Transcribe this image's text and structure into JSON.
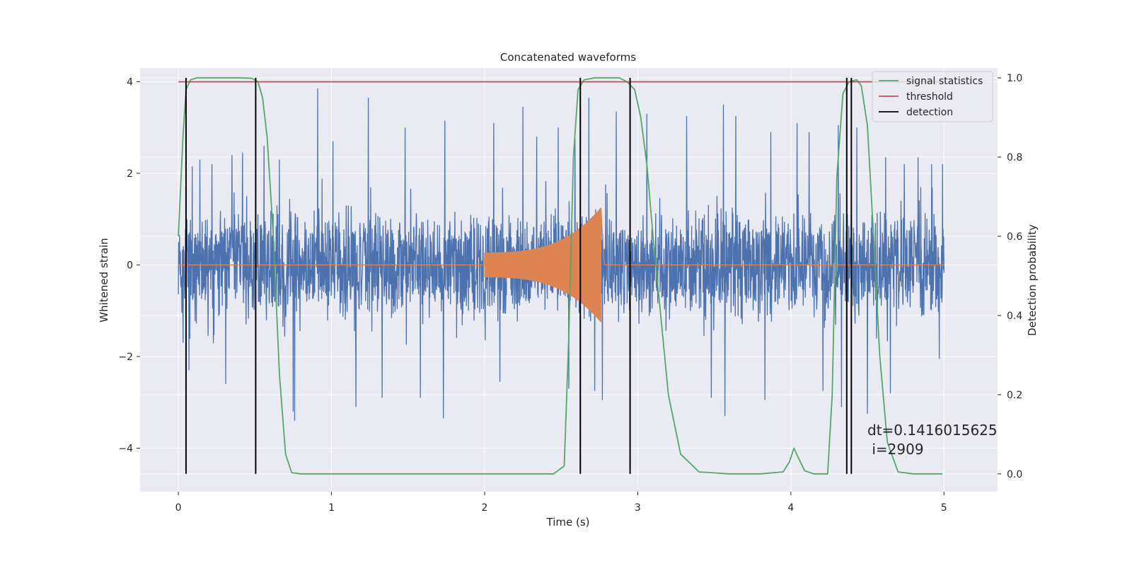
{
  "chart_data": {
    "type": "line",
    "title": "Concatenated waveforms",
    "xlabel": "Time (s)",
    "ylabel": "Whitened strain",
    "y2label": "Detection probability",
    "xlim": [
      -0.25,
      5.35
    ],
    "ylim": [
      -4.95,
      4.3
    ],
    "y2lim": [
      -0.045,
      1.025
    ],
    "xticks": [
      0,
      1,
      2,
      3,
      4,
      5
    ],
    "yticks": [
      -4,
      -2,
      0,
      2,
      4
    ],
    "y2ticks": [
      0.0,
      0.2,
      0.4,
      0.6,
      0.8,
      1.0
    ],
    "grid": true,
    "legend_position": "top-right",
    "colors": {
      "background": "#EAEAF2",
      "grid": "#FFFFFF",
      "whitened_strain": "#4C72B0",
      "injected_waveform": "#DD8452",
      "signal_statistics": "#55A868",
      "threshold": "#C44E52",
      "detection": "#000000"
    },
    "series": [
      {
        "name": "signal statistics",
        "axis": "right",
        "x": [
          0.0,
          0.03,
          0.05,
          0.08,
          0.12,
          0.2,
          0.3,
          0.4,
          0.48,
          0.52,
          0.55,
          0.58,
          0.62,
          0.66,
          0.7,
          0.74,
          0.8,
          1.0,
          1.5,
          2.0,
          2.3,
          2.45,
          2.52,
          2.55,
          2.58,
          2.61,
          2.65,
          2.72,
          2.8,
          2.88,
          2.93,
          2.98,
          3.02,
          3.06,
          3.1,
          3.15,
          3.2,
          3.28,
          3.4,
          3.6,
          3.8,
          3.95,
          3.99,
          4.02,
          4.05,
          4.09,
          4.15,
          4.2,
          4.24,
          4.27,
          4.3,
          4.34,
          4.38,
          4.43,
          4.46,
          4.5,
          4.54,
          4.58,
          4.63,
          4.7,
          4.8,
          4.99
        ],
        "values": [
          0.6,
          0.85,
          0.97,
          0.995,
          1.0,
          1.0,
          1.0,
          1.0,
          0.999,
          0.99,
          0.95,
          0.85,
          0.6,
          0.25,
          0.05,
          0.003,
          0.0,
          0.0,
          0.0,
          0.0,
          0.0,
          0.0,
          0.02,
          0.35,
          0.8,
          0.97,
          0.995,
          1.0,
          1.0,
          1.0,
          0.99,
          0.97,
          0.9,
          0.78,
          0.6,
          0.4,
          0.2,
          0.05,
          0.005,
          0.0,
          0.0,
          0.005,
          0.03,
          0.065,
          0.04,
          0.008,
          0.0,
          0.0,
          0.0,
          0.2,
          0.75,
          0.96,
          0.99,
          0.995,
          0.98,
          0.88,
          0.6,
          0.3,
          0.08,
          0.005,
          0.0,
          0.0
        ]
      },
      {
        "name": "threshold",
        "axis": "right",
        "x": [
          0.0,
          4.99
        ],
        "values": [
          0.99,
          0.99
        ]
      },
      {
        "name": "detection",
        "axis": "right",
        "vlines": [
          0.05,
          0.505,
          2.625,
          2.95,
          4.365,
          4.395
        ],
        "ymin": 0.0,
        "ymax": 1.0
      }
    ],
    "strain_envelope": {
      "x_range": [
        0.0,
        5.0
      ],
      "typical_amplitude": 1.2,
      "spikes": [
        {
          "x": 0.09,
          "y": 2.15
        },
        {
          "x": 0.14,
          "y": 2.3
        },
        {
          "x": 0.22,
          "y": 2.2
        },
        {
          "x": 0.35,
          "y": 2.4
        },
        {
          "x": 0.42,
          "y": 2.45
        },
        {
          "x": 0.56,
          "y": 2.6
        },
        {
          "x": 0.66,
          "y": 2.3
        },
        {
          "x": 0.91,
          "y": 3.85
        },
        {
          "x": 1.01,
          "y": 2.7
        },
        {
          "x": 1.24,
          "y": 3.65
        },
        {
          "x": 1.48,
          "y": 3.0
        },
        {
          "x": 1.74,
          "y": 3.15
        },
        {
          "x": 2.06,
          "y": 3.1
        },
        {
          "x": 2.25,
          "y": 3.45
        },
        {
          "x": 2.34,
          "y": 2.8
        },
        {
          "x": 2.48,
          "y": 3.0
        },
        {
          "x": 2.59,
          "y": 2.75
        },
        {
          "x": 2.68,
          "y": 3.65
        },
        {
          "x": 2.86,
          "y": 3.35
        },
        {
          "x": 3.06,
          "y": 3.3
        },
        {
          "x": 3.32,
          "y": 3.25
        },
        {
          "x": 3.56,
          "y": 3.5
        },
        {
          "x": 3.64,
          "y": 3.25
        },
        {
          "x": 3.87,
          "y": 2.9
        },
        {
          "x": 4.04,
          "y": 3.1
        },
        {
          "x": 4.12,
          "y": 2.9
        },
        {
          "x": 4.31,
          "y": 3.05
        },
        {
          "x": 4.43,
          "y": 3.0
        },
        {
          "x": 4.62,
          "y": 2.35
        },
        {
          "x": 4.74,
          "y": 2.2
        },
        {
          "x": 4.83,
          "y": 2.35
        },
        {
          "x": 4.92,
          "y": 2.2
        },
        {
          "x": 4.99,
          "y": 2.2
        },
        {
          "x": 0.03,
          "y": -1.7
        },
        {
          "x": 0.07,
          "y": -2.3
        },
        {
          "x": 0.31,
          "y": -2.6
        },
        {
          "x": 0.75,
          "y": -3.2
        },
        {
          "x": 0.76,
          "y": -3.4
        },
        {
          "x": 1.16,
          "y": -3.1
        },
        {
          "x": 1.33,
          "y": -2.9
        },
        {
          "x": 1.58,
          "y": -2.9
        },
        {
          "x": 1.73,
          "y": -3.35
        },
        {
          "x": 2.1,
          "y": -2.55
        },
        {
          "x": 2.55,
          "y": -2.7
        },
        {
          "x": 2.72,
          "y": -2.75
        },
        {
          "x": 2.77,
          "y": -2.95
        },
        {
          "x": 3.48,
          "y": -2.9
        },
        {
          "x": 3.57,
          "y": -3.3
        },
        {
          "x": 3.83,
          "y": -2.95
        },
        {
          "x": 4.21,
          "y": -2.75
        },
        {
          "x": 4.33,
          "y": -3.1
        },
        {
          "x": 4.5,
          "y": -3.25
        },
        {
          "x": 4.65,
          "y": -2.8
        },
        {
          "x": 4.97,
          "y": -2.05
        }
      ]
    },
    "injected_waveform": {
      "x_start": 2.0,
      "x_merger": 2.76,
      "x_end": 2.78,
      "start_amplitude": 0.3,
      "peak_amplitude": 1.25
    },
    "legend": [
      {
        "label": "signal statistics",
        "color": "#55A868"
      },
      {
        "label": "threshold",
        "color": "#C44E52"
      },
      {
        "label": "detection",
        "color": "#000000"
      }
    ],
    "annotation": {
      "line1": "dt=0.1416015625",
      "line2": " i=2909"
    }
  }
}
